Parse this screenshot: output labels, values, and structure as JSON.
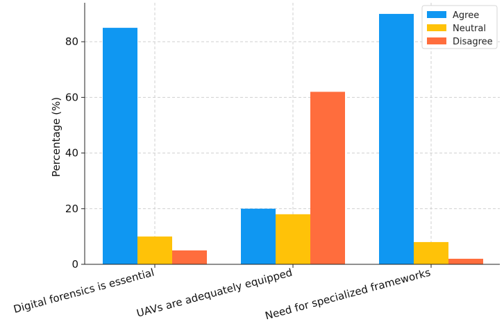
{
  "chart_data": {
    "type": "bar",
    "title": "",
    "xlabel": "",
    "ylabel": "Percentage (%)",
    "categories": [
      "Digital forensics is essential",
      "UAVs are adequately equipped",
      "Need for specialized frameworks"
    ],
    "series": [
      {
        "name": "Agree",
        "values": [
          85,
          20,
          90
        ],
        "color": "#0f97f2"
      },
      {
        "name": "Neutral",
        "values": [
          10,
          18,
          8
        ],
        "color": "#ffc208"
      },
      {
        "name": "Disagree",
        "values": [
          5,
          62,
          2
        ],
        "color": "#ff6d3d"
      }
    ],
    "ylim": [
      0,
      94
    ],
    "yticks": [
      "0",
      "20",
      "40",
      "60",
      "80"
    ],
    "grid": true,
    "legend_position": "top-right"
  }
}
